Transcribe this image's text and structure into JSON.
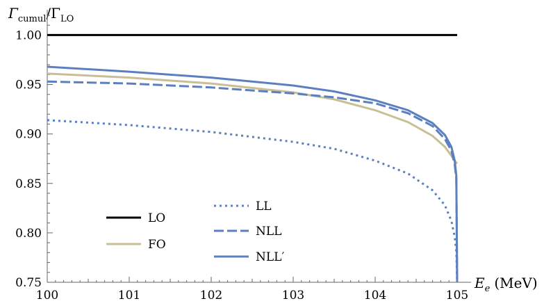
{
  "chart_data": {
    "type": "line",
    "ylabel_main": "Γ",
    "ylabel_sub_num": "cumul",
    "ylabel_mid": "/Γ",
    "ylabel_sub_den": "LO",
    "xlabel_var": "E",
    "xlabel_sub": "e",
    "xlabel_unit": "(MeV)",
    "xlim": [
      100,
      105
    ],
    "ylim": [
      0.75,
      1.02
    ],
    "x_ticks": [
      "100",
      "101",
      "102",
      "103",
      "104",
      "105"
    ],
    "y_ticks": [
      "0.75",
      "0.80",
      "0.85",
      "0.90",
      "0.95",
      "1.00"
    ],
    "series": [
      {
        "name": "LO",
        "color": "#000000",
        "dash": "solid",
        "x": [
          100,
          101,
          102,
          103,
          104,
          105
        ],
        "y": [
          1.0,
          1.0,
          1.0,
          1.0,
          1.0,
          1.0
        ]
      },
      {
        "name": "FO",
        "color": "#c8bf96",
        "dash": "solid",
        "x": [
          100,
          101,
          102,
          103,
          103.5,
          104,
          104.4,
          104.7,
          104.85,
          104.93,
          104.97,
          105
        ],
        "y": [
          0.961,
          0.957,
          0.951,
          0.942,
          0.935,
          0.924,
          0.912,
          0.898,
          0.887,
          0.878,
          0.873,
          0.87
        ]
      },
      {
        "name": "LL",
        "color": "#5b7fbf",
        "dash": "dotted",
        "x": [
          100,
          101,
          102,
          103,
          103.5,
          104,
          104.4,
          104.7,
          104.85,
          104.93,
          104.97,
          104.99,
          105
        ],
        "y": [
          0.914,
          0.909,
          0.902,
          0.892,
          0.885,
          0.873,
          0.86,
          0.843,
          0.828,
          0.812,
          0.796,
          0.781,
          0.75
        ]
      },
      {
        "name": "NLL",
        "color": "#5b7fbf",
        "dash": "dashed",
        "x": [
          100,
          101,
          102,
          103,
          103.5,
          104,
          104.4,
          104.7,
          104.85,
          104.93,
          104.97,
          104.99,
          105
        ],
        "y": [
          0.953,
          0.951,
          0.947,
          0.941,
          0.937,
          0.931,
          0.921,
          0.908,
          0.895,
          0.883,
          0.869,
          0.855,
          0.75
        ]
      },
      {
        "name": "NLL′",
        "color": "#5b7fbf",
        "dash": "solid",
        "x": [
          100,
          101,
          102,
          103,
          103.5,
          104,
          104.4,
          104.7,
          104.85,
          104.93,
          104.97,
          104.99,
          105
        ],
        "y": [
          0.968,
          0.963,
          0.957,
          0.949,
          0.943,
          0.934,
          0.924,
          0.911,
          0.899,
          0.887,
          0.873,
          0.858,
          0.75
        ]
      }
    ]
  }
}
